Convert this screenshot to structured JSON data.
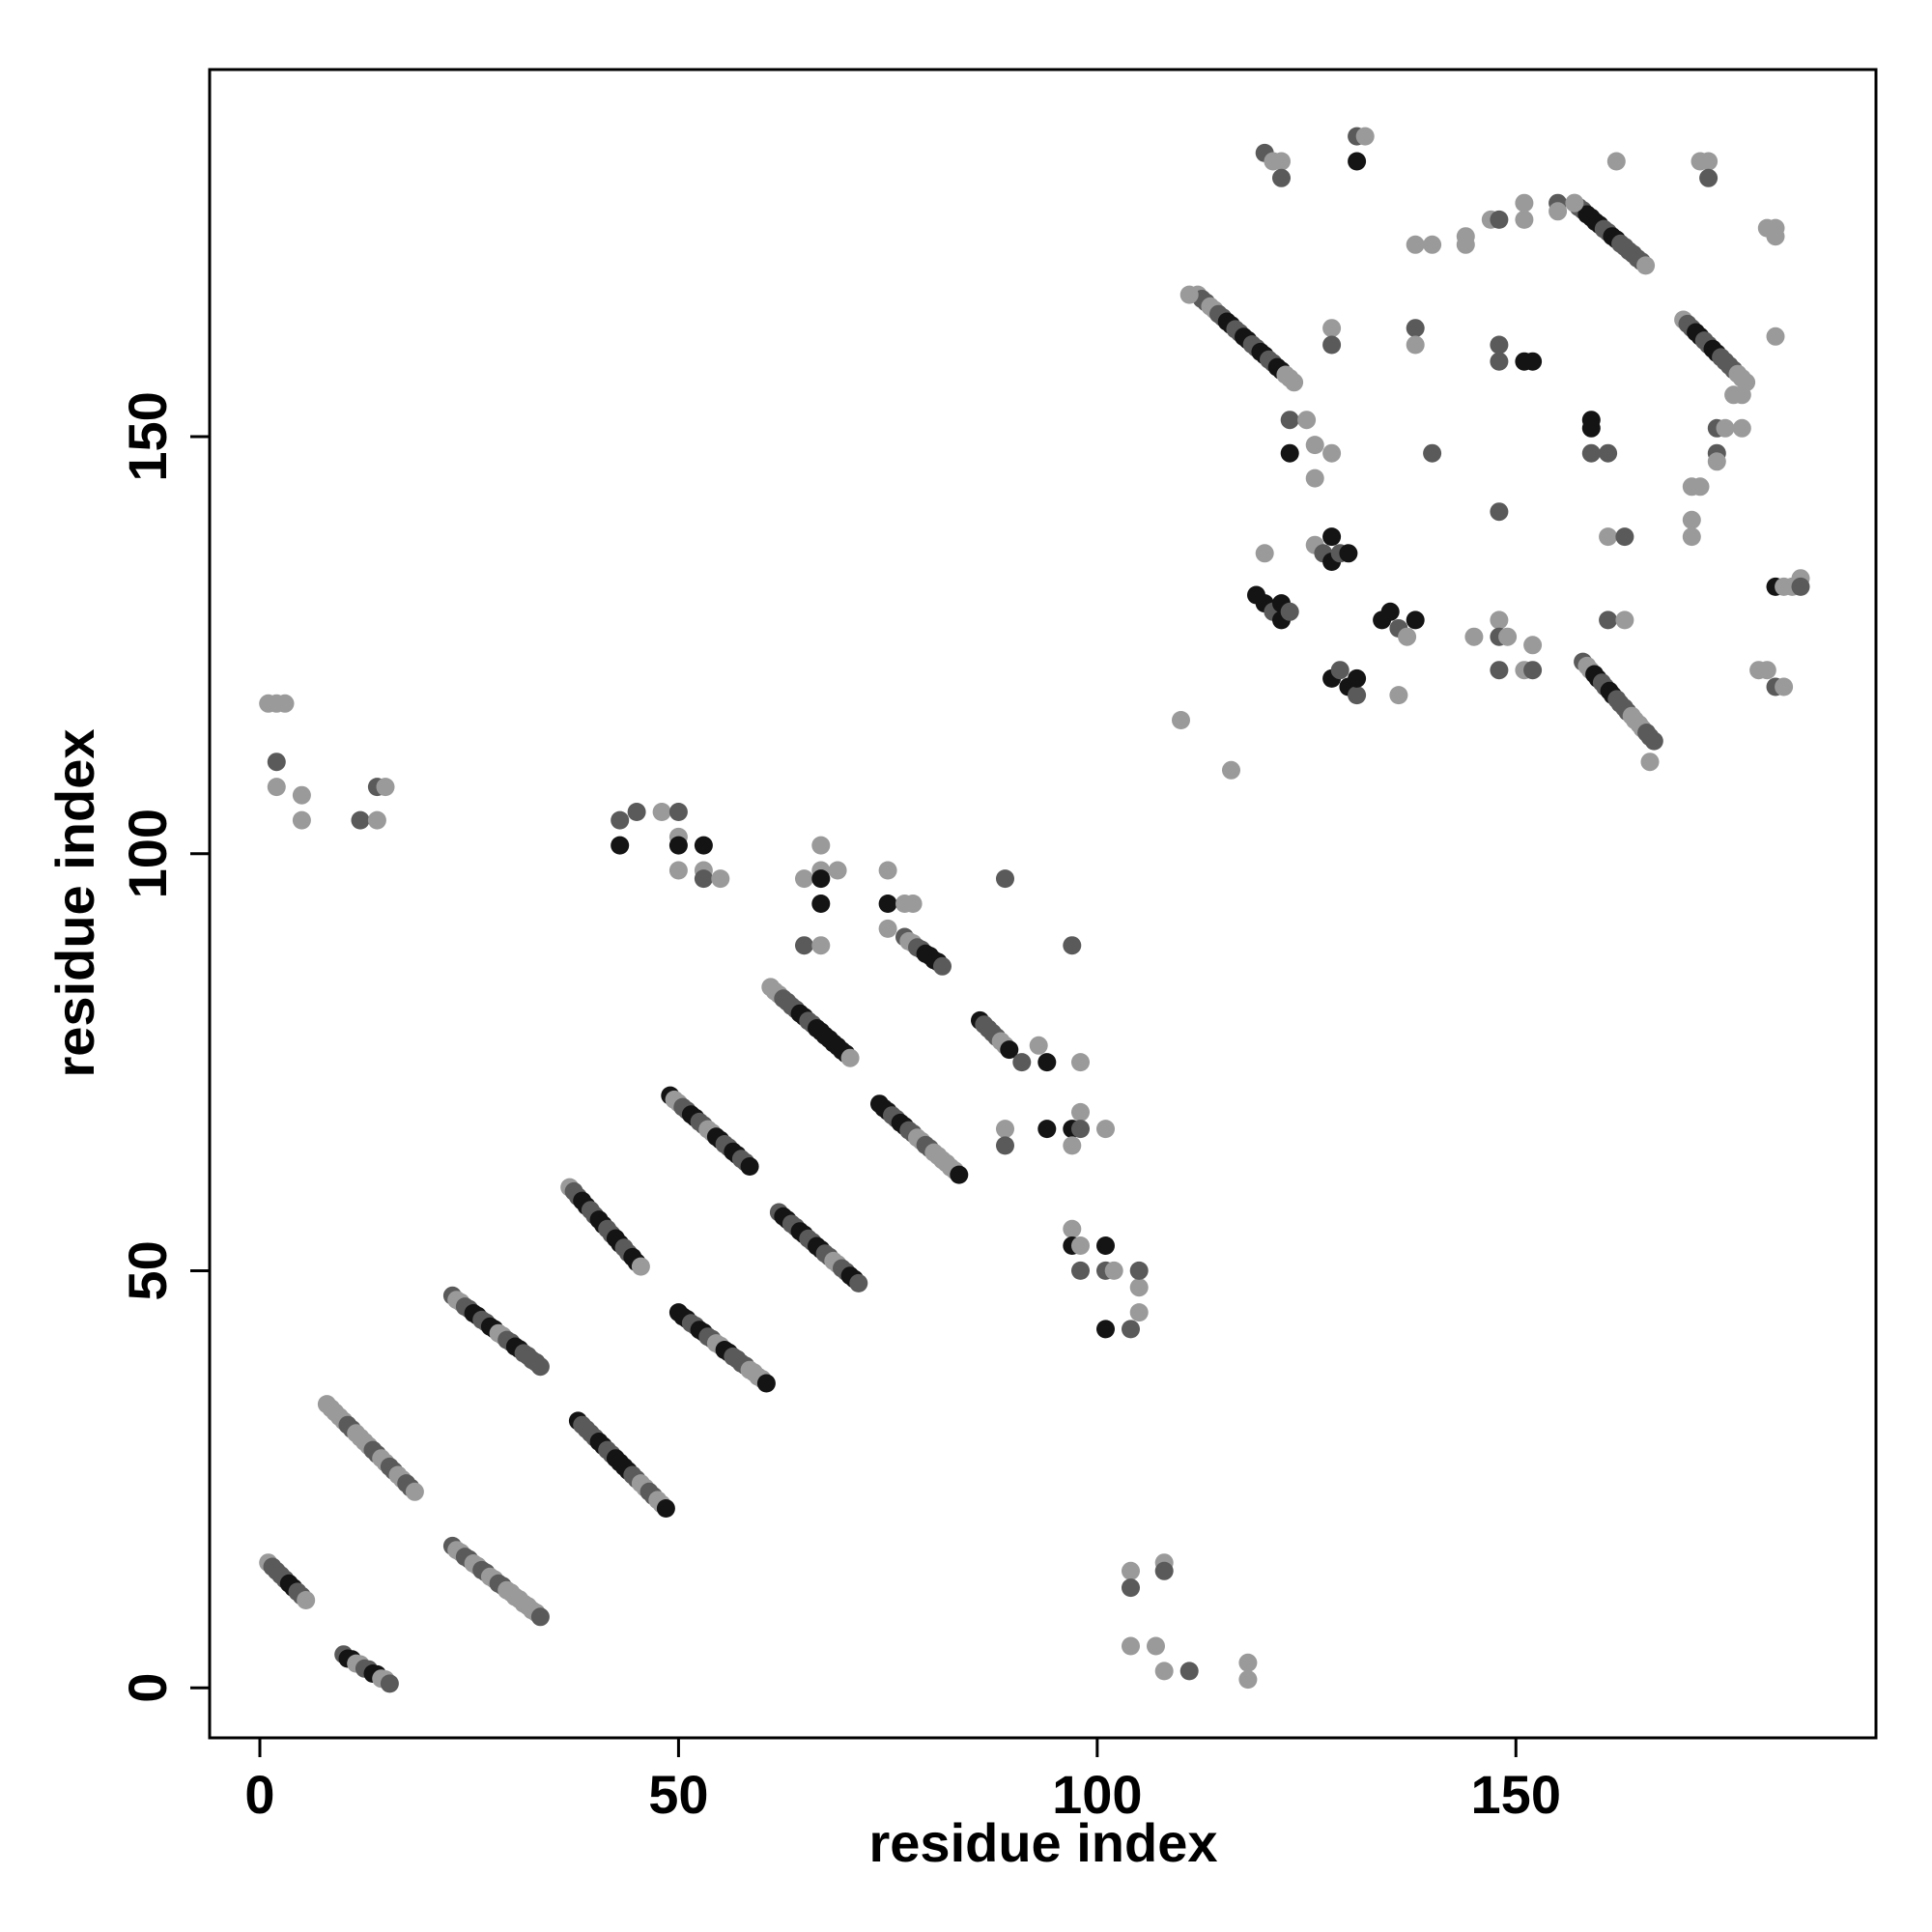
{
  "chart_data": {
    "type": "scatter",
    "title": "",
    "xlabel": "residue index",
    "ylabel": "residue index",
    "xlim": [
      -6,
      193
    ],
    "ylim": [
      -6,
      194
    ],
    "xticks": [
      0,
      50,
      100,
      150
    ],
    "yticks": [
      0,
      50,
      100,
      150
    ],
    "grid": false,
    "legend": "none",
    "color_scale": [
      "#9a9a9a",
      "#5a5a5a",
      "#141414"
    ],
    "segments": [
      {
        "from": [
          1,
          15
        ],
        "to": [
          5,
          11
        ],
        "shades": [
          0,
          1,
          1,
          2,
          1
        ]
      },
      {
        "from": [
          10,
          4
        ],
        "to": [
          15,
          1
        ],
        "shades": [
          1,
          2,
          0,
          1,
          2,
          0
        ]
      },
      {
        "from": [
          8,
          34
        ],
        "to": [
          18,
          24
        ],
        "shades": [
          0,
          0,
          0,
          1,
          0,
          0,
          1,
          0,
          1,
          0,
          1
        ]
      },
      {
        "from": [
          23,
          47
        ],
        "to": [
          33,
          39
        ],
        "shades": [
          1,
          0,
          1,
          2,
          1,
          2,
          0,
          1,
          2,
          1,
          1
        ]
      },
      {
        "from": [
          23,
          17
        ],
        "to": [
          33,
          9
        ],
        "shades": [
          1,
          0,
          1,
          0,
          1,
          0,
          1,
          0,
          0,
          0,
          0
        ]
      },
      {
        "from": [
          37,
          60
        ],
        "to": [
          45,
          51
        ],
        "shades": [
          0,
          1,
          2,
          1,
          2,
          1,
          2,
          1,
          2
        ]
      },
      {
        "from": [
          38,
          32
        ],
        "to": [
          48,
          22
        ],
        "shades": [
          2,
          1,
          1,
          2,
          1,
          2,
          2,
          1,
          0,
          1,
          0
        ]
      },
      {
        "from": [
          49,
          71
        ],
        "to": [
          58,
          63
        ],
        "shades": [
          2,
          0,
          1,
          2,
          1,
          0,
          2,
          1,
          2,
          1
        ]
      },
      {
        "from": [
          50,
          45
        ],
        "to": [
          60,
          37
        ],
        "shades": [
          2,
          2,
          1,
          2,
          1,
          0,
          2,
          1,
          1,
          0,
          0
        ]
      },
      {
        "from": [
          62,
          57
        ],
        "to": [
          71,
          49
        ],
        "shades": [
          1,
          2,
          1,
          2,
          1,
          2,
          1,
          0,
          1,
          2
        ]
      },
      {
        "from": [
          61,
          84
        ],
        "to": [
          70,
          76
        ],
        "shades": [
          0,
          0,
          1,
          1,
          2,
          1,
          2,
          2,
          2,
          2
        ]
      },
      {
        "from": [
          74,
          70
        ],
        "to": [
          83,
          62
        ],
        "shades": [
          2,
          2,
          1,
          2,
          1,
          0,
          1,
          0,
          0,
          0
        ]
      },
      {
        "from": [
          77,
          90
        ],
        "to": [
          81,
          87
        ],
        "shades": [
          1,
          0,
          1,
          2,
          2
        ]
      },
      {
        "from": [
          86,
          80
        ],
        "to": [
          89,
          77
        ],
        "shades": [
          2,
          1,
          1,
          0
        ]
      },
      {
        "from": [
          112,
          167
        ],
        "to": [
          123,
          157
        ],
        "shades": [
          0,
          1,
          0,
          1,
          2,
          1,
          2,
          1,
          2,
          1,
          2,
          0
        ]
      },
      {
        "from": [
          157,
          178
        ],
        "to": [
          165,
          171
        ],
        "shades": [
          0,
          1,
          2,
          2,
          1,
          2,
          1,
          1,
          1
        ]
      },
      {
        "from": [
          170,
          164
        ],
        "to": [
          177,
          157
        ],
        "shades": [
          0,
          1,
          2,
          1,
          2,
          1,
          1,
          0
        ]
      },
      {
        "from": [
          158,
          123
        ],
        "to": [
          166,
          114
        ],
        "shades": [
          1,
          0,
          2,
          1,
          2,
          1,
          1,
          0,
          0,
          1
        ]
      }
    ],
    "points": [
      {
        "x": 1,
        "y": 118,
        "shade": 0
      },
      {
        "x": 2,
        "y": 118,
        "shade": 0
      },
      {
        "x": 3,
        "y": 118,
        "shade": 0
      },
      {
        "x": 2,
        "y": 111,
        "shade": 1
      },
      {
        "x": 2,
        "y": 108,
        "shade": 0
      },
      {
        "x": 5,
        "y": 107,
        "shade": 0
      },
      {
        "x": 5,
        "y": 104,
        "shade": 0
      },
      {
        "x": 12,
        "y": 104,
        "shade": 1
      },
      {
        "x": 14,
        "y": 104,
        "shade": 0
      },
      {
        "x": 14,
        "y": 108,
        "shade": 1
      },
      {
        "x": 15,
        "y": 108,
        "shade": 0
      },
      {
        "x": 43,
        "y": 104,
        "shade": 1
      },
      {
        "x": 43,
        "y": 101,
        "shade": 2
      },
      {
        "x": 45,
        "y": 105,
        "shade": 1
      },
      {
        "x": 48,
        "y": 105,
        "shade": 0
      },
      {
        "x": 50,
        "y": 105,
        "shade": 1
      },
      {
        "x": 50,
        "y": 102,
        "shade": 0
      },
      {
        "x": 50,
        "y": 101,
        "shade": 2
      },
      {
        "x": 50,
        "y": 98,
        "shade": 0
      },
      {
        "x": 53,
        "y": 101,
        "shade": 2
      },
      {
        "x": 53,
        "y": 98,
        "shade": 0
      },
      {
        "x": 53,
        "y": 97,
        "shade": 1
      },
      {
        "x": 55,
        "y": 97,
        "shade": 0
      },
      {
        "x": 65,
        "y": 97,
        "shade": 0
      },
      {
        "x": 67,
        "y": 101,
        "shade": 0
      },
      {
        "x": 67,
        "y": 98,
        "shade": 0
      },
      {
        "x": 67,
        "y": 97,
        "shade": 2
      },
      {
        "x": 69,
        "y": 98,
        "shade": 0
      },
      {
        "x": 67,
        "y": 94,
        "shade": 2
      },
      {
        "x": 65,
        "y": 89,
        "shade": 1
      },
      {
        "x": 67,
        "y": 89,
        "shade": 0
      },
      {
        "x": 75,
        "y": 98,
        "shade": 0
      },
      {
        "x": 75,
        "y": 94,
        "shade": 2
      },
      {
        "x": 77,
        "y": 94,
        "shade": 0
      },
      {
        "x": 78,
        "y": 94,
        "shade": 0
      },
      {
        "x": 75,
        "y": 91,
        "shade": 0
      },
      {
        "x": 89,
        "y": 97,
        "shade": 1
      },
      {
        "x": 91,
        "y": 75,
        "shade": 1
      },
      {
        "x": 94,
        "y": 75,
        "shade": 2
      },
      {
        "x": 98,
        "y": 75,
        "shade": 0
      },
      {
        "x": 93,
        "y": 77,
        "shade": 0
      },
      {
        "x": 89,
        "y": 67,
        "shade": 0
      },
      {
        "x": 89,
        "y": 65,
        "shade": 1
      },
      {
        "x": 94,
        "y": 67,
        "shade": 2
      },
      {
        "x": 97,
        "y": 67,
        "shade": 2
      },
      {
        "x": 97,
        "y": 65,
        "shade": 0
      },
      {
        "x": 98,
        "y": 69,
        "shade": 0
      },
      {
        "x": 98,
        "y": 67,
        "shade": 1
      },
      {
        "x": 101,
        "y": 67,
        "shade": 0
      },
      {
        "x": 97,
        "y": 89,
        "shade": 1
      },
      {
        "x": 97,
        "y": 55,
        "shade": 0
      },
      {
        "x": 97,
        "y": 53,
        "shade": 2
      },
      {
        "x": 98,
        "y": 53,
        "shade": 0
      },
      {
        "x": 98,
        "y": 50,
        "shade": 1
      },
      {
        "x": 101,
        "y": 53,
        "shade": 2
      },
      {
        "x": 101,
        "y": 50,
        "shade": 1
      },
      {
        "x": 102,
        "y": 50,
        "shade": 0
      },
      {
        "x": 101,
        "y": 43,
        "shade": 2
      },
      {
        "x": 104,
        "y": 43,
        "shade": 1
      },
      {
        "x": 105,
        "y": 45,
        "shade": 0
      },
      {
        "x": 105,
        "y": 48,
        "shade": 0
      },
      {
        "x": 105,
        "y": 50,
        "shade": 1
      },
      {
        "x": 104,
        "y": 14,
        "shade": 0
      },
      {
        "x": 104,
        "y": 12,
        "shade": 1
      },
      {
        "x": 108,
        "y": 15,
        "shade": 0
      },
      {
        "x": 108,
        "y": 14,
        "shade": 1
      },
      {
        "x": 104,
        "y": 5,
        "shade": 0
      },
      {
        "x": 107,
        "y": 5,
        "shade": 0
      },
      {
        "x": 108,
        "y": 2,
        "shade": 0
      },
      {
        "x": 111,
        "y": 2,
        "shade": 1
      },
      {
        "x": 118,
        "y": 3,
        "shade": 0
      },
      {
        "x": 118,
        "y": 1,
        "shade": 0
      },
      {
        "x": 110,
        "y": 116,
        "shade": 0
      },
      {
        "x": 116,
        "y": 110,
        "shade": 0
      },
      {
        "x": 111,
        "y": 167,
        "shade": 0
      },
      {
        "x": 120,
        "y": 184,
        "shade": 1
      },
      {
        "x": 121,
        "y": 183,
        "shade": 0
      },
      {
        "x": 122,
        "y": 183,
        "shade": 0
      },
      {
        "x": 122,
        "y": 181,
        "shade": 1
      },
      {
        "x": 131,
        "y": 186,
        "shade": 1
      },
      {
        "x": 132,
        "y": 186,
        "shade": 0
      },
      {
        "x": 131,
        "y": 183,
        "shade": 2
      },
      {
        "x": 123,
        "y": 152,
        "shade": 1
      },
      {
        "x": 123,
        "y": 148,
        "shade": 2
      },
      {
        "x": 125,
        "y": 152,
        "shade": 0
      },
      {
        "x": 126,
        "y": 149,
        "shade": 0
      },
      {
        "x": 126,
        "y": 145,
        "shade": 0
      },
      {
        "x": 128,
        "y": 148,
        "shade": 0
      },
      {
        "x": 128,
        "y": 163,
        "shade": 0
      },
      {
        "x": 128,
        "y": 161,
        "shade": 1
      },
      {
        "x": 120,
        "y": 136,
        "shade": 0
      },
      {
        "x": 119,
        "y": 131,
        "shade": 2
      },
      {
        "x": 120,
        "y": 130,
        "shade": 2
      },
      {
        "x": 121,
        "y": 129,
        "shade": 1
      },
      {
        "x": 122,
        "y": 130,
        "shade": 2
      },
      {
        "x": 122,
        "y": 128,
        "shade": 2
      },
      {
        "x": 123,
        "y": 129,
        "shade": 1
      },
      {
        "x": 126,
        "y": 137,
        "shade": 0
      },
      {
        "x": 127,
        "y": 136,
        "shade": 1
      },
      {
        "x": 128,
        "y": 138,
        "shade": 2
      },
      {
        "x": 128,
        "y": 135,
        "shade": 2
      },
      {
        "x": 129,
        "y": 136,
        "shade": 1
      },
      {
        "x": 130,
        "y": 136,
        "shade": 2
      },
      {
        "x": 128,
        "y": 121,
        "shade": 2
      },
      {
        "x": 129,
        "y": 122,
        "shade": 1
      },
      {
        "x": 130,
        "y": 120,
        "shade": 2
      },
      {
        "x": 131,
        "y": 119,
        "shade": 1
      },
      {
        "x": 131,
        "y": 121,
        "shade": 2
      },
      {
        "x": 134,
        "y": 128,
        "shade": 2
      },
      {
        "x": 135,
        "y": 129,
        "shade": 2
      },
      {
        "x": 136,
        "y": 127,
        "shade": 1
      },
      {
        "x": 136,
        "y": 119,
        "shade": 0
      },
      {
        "x": 137,
        "y": 126,
        "shade": 0
      },
      {
        "x": 138,
        "y": 128,
        "shade": 2
      },
      {
        "x": 138,
        "y": 173,
        "shade": 0
      },
      {
        "x": 138,
        "y": 163,
        "shade": 1
      },
      {
        "x": 138,
        "y": 161,
        "shade": 0
      },
      {
        "x": 140,
        "y": 173,
        "shade": 0
      },
      {
        "x": 140,
        "y": 148,
        "shade": 1
      },
      {
        "x": 144,
        "y": 174,
        "shade": 0
      },
      {
        "x": 144,
        "y": 173,
        "shade": 0
      },
      {
        "x": 145,
        "y": 126,
        "shade": 0
      },
      {
        "x": 147,
        "y": 176,
        "shade": 0
      },
      {
        "x": 148,
        "y": 176,
        "shade": 1
      },
      {
        "x": 148,
        "y": 161,
        "shade": 1
      },
      {
        "x": 148,
        "y": 159,
        "shade": 1
      },
      {
        "x": 148,
        "y": 141,
        "shade": 1
      },
      {
        "x": 148,
        "y": 128,
        "shade": 0
      },
      {
        "x": 148,
        "y": 126,
        "shade": 1
      },
      {
        "x": 149,
        "y": 126,
        "shade": 0
      },
      {
        "x": 148,
        "y": 122,
        "shade": 1
      },
      {
        "x": 151,
        "y": 176,
        "shade": 0
      },
      {
        "x": 151,
        "y": 178,
        "shade": 0
      },
      {
        "x": 151,
        "y": 159,
        "shade": 2
      },
      {
        "x": 152,
        "y": 159,
        "shade": 2
      },
      {
        "x": 151,
        "y": 122,
        "shade": 0
      },
      {
        "x": 152,
        "y": 122,
        "shade": 1
      },
      {
        "x": 152,
        "y": 125,
        "shade": 0
      },
      {
        "x": 155,
        "y": 178,
        "shade": 1
      },
      {
        "x": 155,
        "y": 177,
        "shade": 0
      },
      {
        "x": 157,
        "y": 178,
        "shade": 0
      },
      {
        "x": 159,
        "y": 152,
        "shade": 2
      },
      {
        "x": 159,
        "y": 151,
        "shade": 2
      },
      {
        "x": 159,
        "y": 148,
        "shade": 1
      },
      {
        "x": 161,
        "y": 148,
        "shade": 1
      },
      {
        "x": 161,
        "y": 138,
        "shade": 0
      },
      {
        "x": 163,
        "y": 138,
        "shade": 1
      },
      {
        "x": 161,
        "y": 128,
        "shade": 1
      },
      {
        "x": 163,
        "y": 128,
        "shade": 0
      },
      {
        "x": 162,
        "y": 183,
        "shade": 0
      },
      {
        "x": 166,
        "y": 111,
        "shade": 0
      },
      {
        "x": 172,
        "y": 183,
        "shade": 0
      },
      {
        "x": 173,
        "y": 183,
        "shade": 0
      },
      {
        "x": 173,
        "y": 181,
        "shade": 1
      },
      {
        "x": 171,
        "y": 144,
        "shade": 0
      },
      {
        "x": 172,
        "y": 144,
        "shade": 0
      },
      {
        "x": 171,
        "y": 140,
        "shade": 0
      },
      {
        "x": 171,
        "y": 138,
        "shade": 0
      },
      {
        "x": 174,
        "y": 151,
        "shade": 1
      },
      {
        "x": 175,
        "y": 151,
        "shade": 0
      },
      {
        "x": 174,
        "y": 148,
        "shade": 1
      },
      {
        "x": 174,
        "y": 147,
        "shade": 0
      },
      {
        "x": 176,
        "y": 155,
        "shade": 0
      },
      {
        "x": 177,
        "y": 155,
        "shade": 0
      },
      {
        "x": 177,
        "y": 151,
        "shade": 0
      },
      {
        "x": 180,
        "y": 175,
        "shade": 0
      },
      {
        "x": 181,
        "y": 175,
        "shade": 0
      },
      {
        "x": 181,
        "y": 174,
        "shade": 0
      },
      {
        "x": 181,
        "y": 162,
        "shade": 0
      },
      {
        "x": 179,
        "y": 122,
        "shade": 0
      },
      {
        "x": 180,
        "y": 122,
        "shade": 0
      },
      {
        "x": 181,
        "y": 120,
        "shade": 1
      },
      {
        "x": 182,
        "y": 120,
        "shade": 0
      },
      {
        "x": 181,
        "y": 132,
        "shade": 2
      },
      {
        "x": 182,
        "y": 132,
        "shade": 0
      },
      {
        "x": 183,
        "y": 132,
        "shade": 0
      },
      {
        "x": 184,
        "y": 133,
        "shade": 0
      },
      {
        "x": 184,
        "y": 132,
        "shade": 1
      }
    ]
  }
}
